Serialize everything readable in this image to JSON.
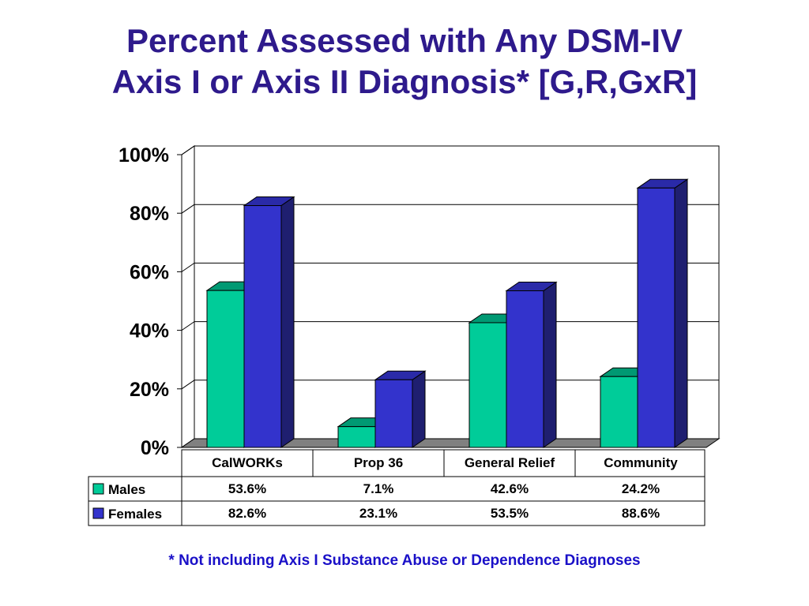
{
  "title": {
    "line1": "Percent Assessed with Any DSM-IV",
    "line2": "Axis I or Axis II Diagnosis* [G,R,GxR]"
  },
  "footnote": "* Not including Axis I Substance Abuse or Dependence Diagnoses",
  "chart_data": {
    "type": "bar",
    "style": "3d-clustered-with-data-table",
    "categories": [
      "CalWORKs",
      "Prop 36",
      "General Relief",
      "Community"
    ],
    "series": [
      {
        "name": "Males",
        "values": [
          53.6,
          7.1,
          42.6,
          24.2
        ],
        "labels": [
          "53.6%",
          "7.1%",
          "42.6%",
          "24.2%"
        ],
        "color": "#00CC99",
        "top_color": "#009973",
        "side_color": "#007A5C"
      },
      {
        "name": "Females",
        "values": [
          82.6,
          23.1,
          53.5,
          88.6
        ],
        "labels": [
          "82.6%",
          "23.1%",
          "53.5%",
          "88.6%"
        ],
        "color": "#3333CC",
        "top_color": "#2A2AA8",
        "side_color": "#1F1F70"
      }
    ],
    "y_ticks": [
      "0%",
      "20%",
      "40%",
      "60%",
      "80%",
      "100%"
    ],
    "ylim": [
      0,
      100
    ],
    "grid": true,
    "legend": "in-data-table"
  }
}
